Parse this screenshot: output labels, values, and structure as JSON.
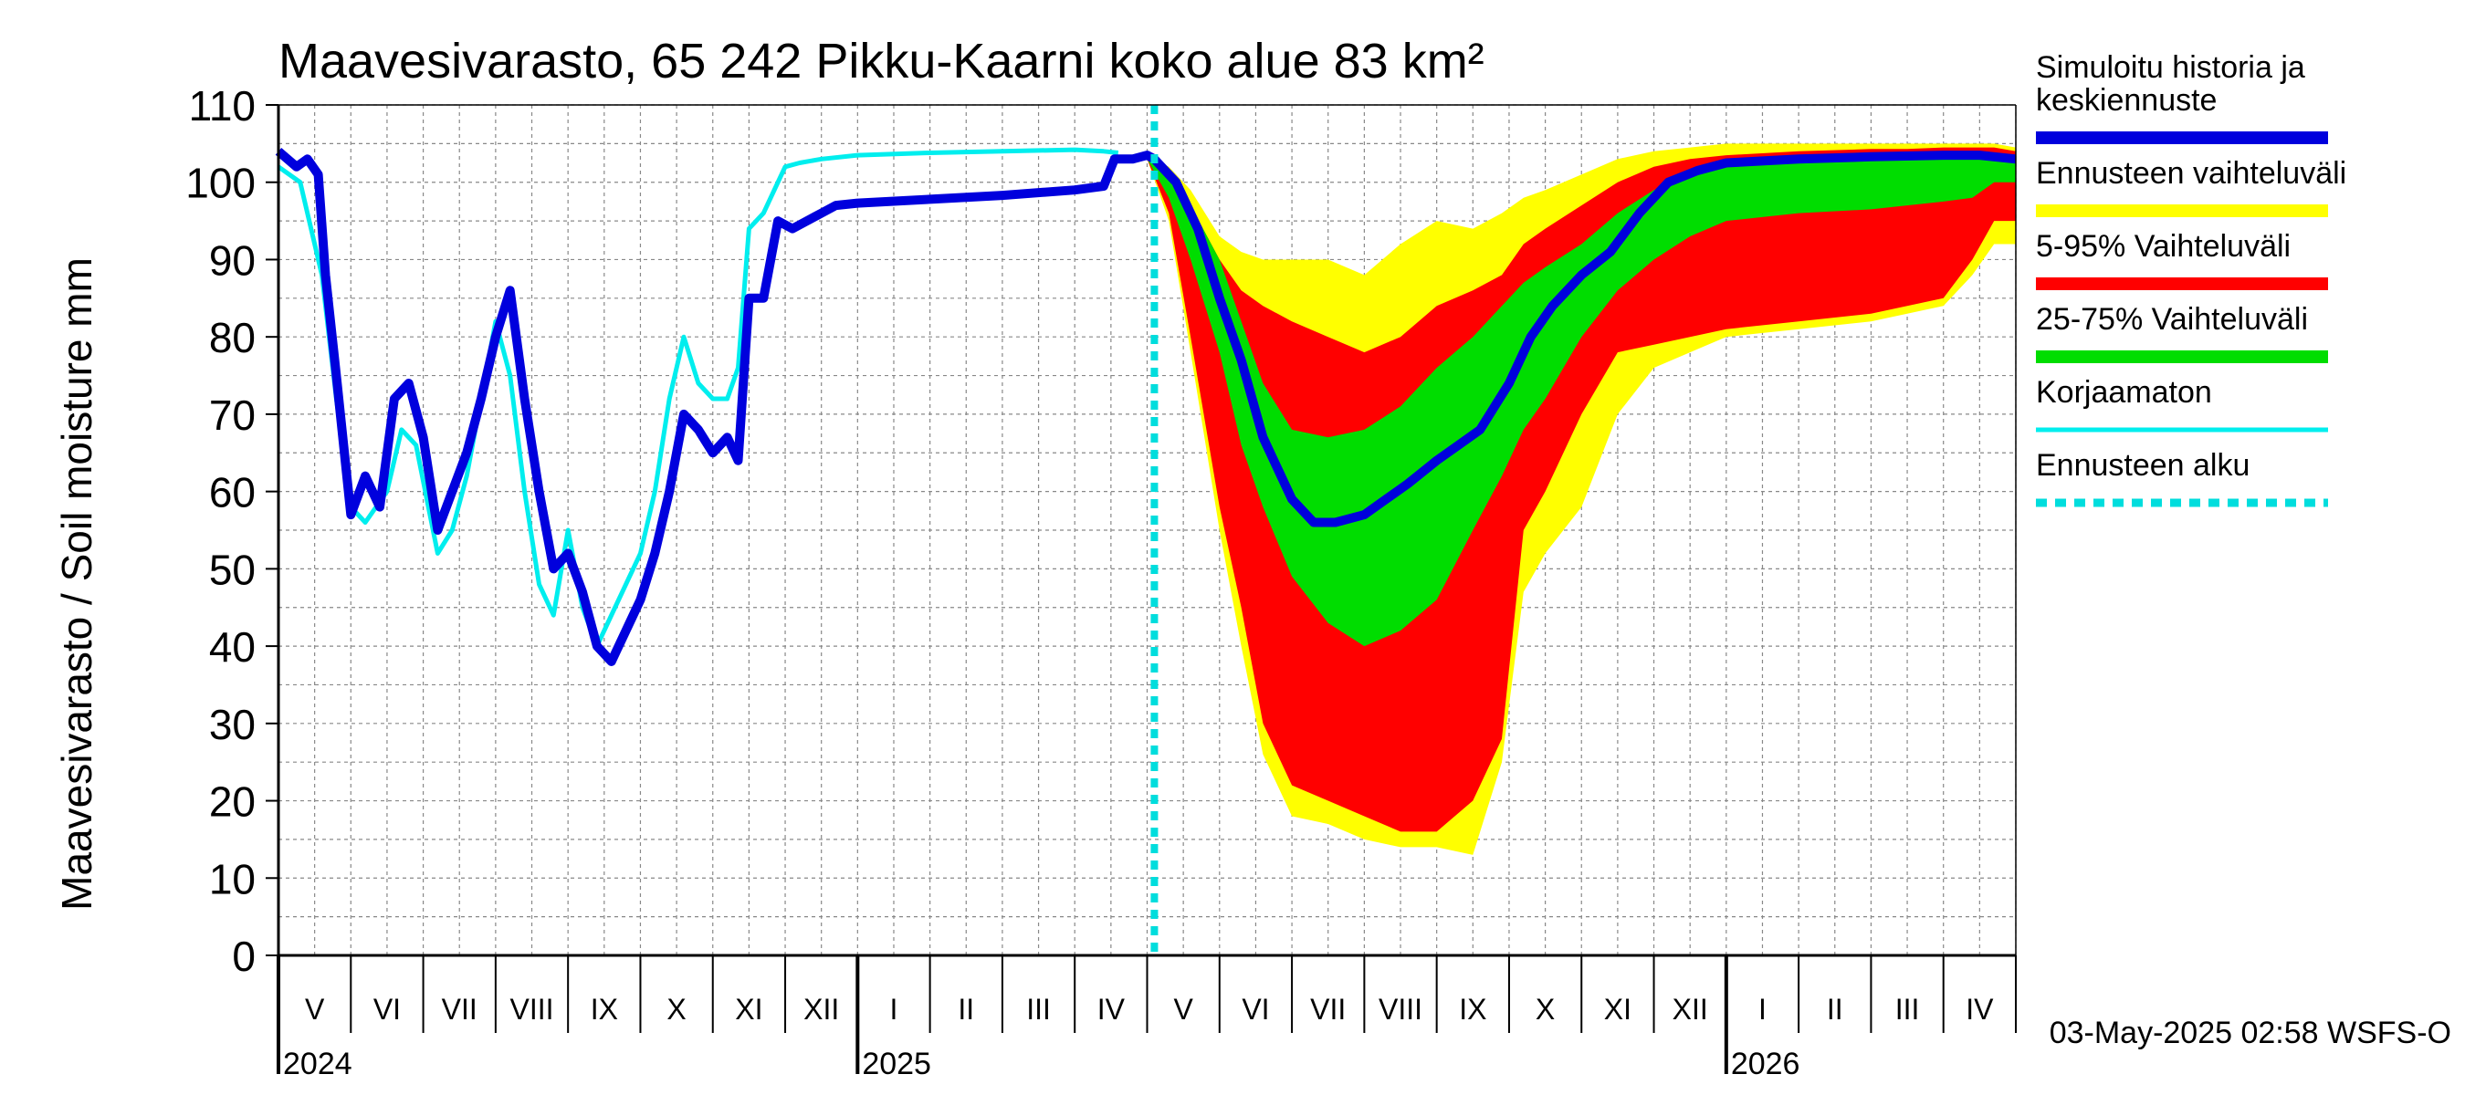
{
  "chart_data": {
    "type": "area",
    "title": "Maavesivarasto, 65 242 Pikku-Kaarni koko alue 83 km²",
    "ylabel": "Maavesivarasto / Soil moisture   mm",
    "xlabel": "",
    "ylim": [
      0,
      110
    ],
    "y_ticks": [
      0,
      10,
      20,
      30,
      40,
      50,
      60,
      70,
      80,
      90,
      100,
      110
    ],
    "grid": true,
    "x_range_month_index": [
      0,
      24
    ],
    "month_labels": [
      "V",
      "VI",
      "VII",
      "VIII",
      "IX",
      "X",
      "XI",
      "XII",
      "I",
      "II",
      "III",
      "IV",
      "V",
      "VI",
      "VII",
      "VIII",
      "IX",
      "X",
      "XI",
      "XII",
      "I",
      "II",
      "III",
      "IV"
    ],
    "year_labels": [
      {
        "label": "2024",
        "month_index": 0
      },
      {
        "label": "2025",
        "month_index": 8
      },
      {
        "label": "2026",
        "month_index": 20
      }
    ],
    "forecast_start_month_index": 12.1,
    "legend_position": "right",
    "legend": [
      {
        "label": "Simuloitu historia ja keskiennuste",
        "lines": [
          "Simuloitu historia ja",
          "keskiennuste"
        ],
        "color": "#0000dd",
        "style": "solid"
      },
      {
        "label": "Ennusteen vaihteluväli",
        "lines": [
          "Ennusteen vaihteluväli"
        ],
        "color": "#ffff00",
        "style": "solid"
      },
      {
        "label": "5-95% Vaihteluväli",
        "lines": [
          "5-95% Vaihteluväli"
        ],
        "color": "#ff0000",
        "style": "solid"
      },
      {
        "label": "25-75% Vaihteluväli",
        "lines": [
          "25-75% Vaihteluväli"
        ],
        "color": "#00dd00",
        "style": "solid"
      },
      {
        "label": "Korjaamaton",
        "lines": [
          "Korjaamaton"
        ],
        "color": "#00eeee",
        "style": "solid"
      },
      {
        "label": "Ennusteen alku",
        "lines": [
          "Ennusteen alku"
        ],
        "color": "#00dddd",
        "style": "dashed"
      }
    ],
    "series": [
      {
        "name": "Simuloitu historia ja keskiennuste",
        "color": "#0000dd",
        "points": [
          [
            0,
            104
          ],
          [
            0.25,
            102
          ],
          [
            0.4,
            103
          ],
          [
            0.55,
            101
          ],
          [
            0.65,
            88
          ],
          [
            0.8,
            75
          ],
          [
            1.0,
            57
          ],
          [
            1.2,
            62
          ],
          [
            1.4,
            58
          ],
          [
            1.6,
            72
          ],
          [
            1.8,
            74
          ],
          [
            2.0,
            67
          ],
          [
            2.2,
            55
          ],
          [
            2.4,
            60
          ],
          [
            2.6,
            65
          ],
          [
            2.8,
            72
          ],
          [
            3.0,
            80
          ],
          [
            3.2,
            86
          ],
          [
            3.4,
            72
          ],
          [
            3.6,
            60
          ],
          [
            3.8,
            50
          ],
          [
            4.0,
            52
          ],
          [
            4.2,
            47
          ],
          [
            4.4,
            40
          ],
          [
            4.6,
            38
          ],
          [
            4.8,
            42
          ],
          [
            5.0,
            46
          ],
          [
            5.2,
            52
          ],
          [
            5.4,
            60
          ],
          [
            5.6,
            70
          ],
          [
            5.8,
            68
          ],
          [
            6.0,
            65
          ],
          [
            6.2,
            67
          ],
          [
            6.35,
            64
          ],
          [
            6.5,
            85
          ],
          [
            6.7,
            85
          ],
          [
            6.9,
            95
          ],
          [
            7.1,
            94
          ],
          [
            7.3,
            95
          ],
          [
            7.5,
            96
          ],
          [
            7.7,
            97
          ],
          [
            8.0,
            97.3
          ],
          [
            9.0,
            97.8
          ],
          [
            10.0,
            98.3
          ],
          [
            11.0,
            99.0
          ],
          [
            11.4,
            99.5
          ],
          [
            11.55,
            103
          ],
          [
            11.8,
            103
          ],
          [
            12.0,
            103.5
          ],
          [
            12.1,
            103
          ],
          [
            12.4,
            100
          ],
          [
            12.7,
            94
          ],
          [
            13.0,
            85
          ],
          [
            13.3,
            77
          ],
          [
            13.6,
            67
          ],
          [
            14.0,
            59
          ],
          [
            14.3,
            56
          ],
          [
            14.6,
            56
          ],
          [
            15.0,
            57
          ],
          [
            15.3,
            59
          ],
          [
            15.6,
            61
          ],
          [
            16.0,
            64
          ],
          [
            16.3,
            66
          ],
          [
            16.6,
            68
          ],
          [
            17.0,
            74
          ],
          [
            17.3,
            80
          ],
          [
            17.6,
            84
          ],
          [
            18.0,
            88
          ],
          [
            18.4,
            91
          ],
          [
            18.8,
            96
          ],
          [
            19.2,
            100
          ],
          [
            19.6,
            101.5
          ],
          [
            20.0,
            102.5
          ],
          [
            21.0,
            103
          ],
          [
            22.0,
            103.3
          ],
          [
            23.0,
            103.5
          ],
          [
            23.5,
            103.5
          ],
          [
            24.0,
            103
          ]
        ]
      },
      {
        "name": "Korjaamaton",
        "color": "#00eeee",
        "points": [
          [
            0,
            102
          ],
          [
            0.3,
            100
          ],
          [
            0.6,
            88
          ],
          [
            0.8,
            72
          ],
          [
            1.0,
            58
          ],
          [
            1.2,
            56
          ],
          [
            1.5,
            60
          ],
          [
            1.7,
            68
          ],
          [
            1.9,
            66
          ],
          [
            2.2,
            52
          ],
          [
            2.4,
            55
          ],
          [
            2.6,
            62
          ],
          [
            2.8,
            72
          ],
          [
            3.0,
            82
          ],
          [
            3.2,
            75
          ],
          [
            3.4,
            60
          ],
          [
            3.6,
            48
          ],
          [
            3.8,
            44
          ],
          [
            4.0,
            55
          ],
          [
            4.2,
            45
          ],
          [
            4.4,
            40
          ],
          [
            4.6,
            44
          ],
          [
            4.8,
            48
          ],
          [
            5.0,
            52
          ],
          [
            5.2,
            60
          ],
          [
            5.4,
            72
          ],
          [
            5.6,
            80
          ],
          [
            5.8,
            74
          ],
          [
            6.0,
            72
          ],
          [
            6.2,
            72
          ],
          [
            6.35,
            76
          ],
          [
            6.5,
            94
          ],
          [
            6.7,
            96
          ],
          [
            6.9,
            100
          ],
          [
            7.0,
            102
          ],
          [
            7.2,
            102.5
          ],
          [
            7.5,
            103
          ],
          [
            8.0,
            103.5
          ],
          [
            9.0,
            103.8
          ],
          [
            10.0,
            104
          ],
          [
            11.0,
            104.2
          ],
          [
            11.4,
            104
          ],
          [
            11.6,
            103.8
          ]
        ]
      }
    ],
    "bands": [
      {
        "name": "Ennusteen vaihteluväli",
        "color": "#ffff00",
        "points": [
          [
            12.0,
            103.5,
            103
          ],
          [
            12.3,
            102,
            95
          ],
          [
            12.6,
            99,
            78
          ],
          [
            13.0,
            93,
            55
          ],
          [
            13.3,
            91,
            40
          ],
          [
            13.6,
            90,
            26
          ],
          [
            14.0,
            90,
            18
          ],
          [
            14.5,
            90,
            17
          ],
          [
            15.0,
            88,
            15
          ],
          [
            15.5,
            92,
            14
          ],
          [
            16.0,
            95,
            14
          ],
          [
            16.5,
            94,
            13
          ],
          [
            16.9,
            96,
            25
          ],
          [
            17.2,
            98,
            47
          ],
          [
            17.5,
            99,
            52
          ],
          [
            18.0,
            101,
            58
          ],
          [
            18.5,
            103,
            70
          ],
          [
            19.0,
            104,
            76
          ],
          [
            19.5,
            104.5,
            78
          ],
          [
            20.0,
            105,
            80
          ],
          [
            21.0,
            105,
            81
          ],
          [
            22.0,
            105,
            82
          ],
          [
            22.5,
            105,
            83
          ],
          [
            23.0,
            105,
            84
          ],
          [
            23.4,
            105,
            88
          ],
          [
            23.7,
            105,
            92
          ],
          [
            24.0,
            104.5,
            92
          ]
        ]
      },
      {
        "name": "5-95% Vaihteluväli",
        "color": "#ff0000",
        "points": [
          [
            12.0,
            103.5,
            103
          ],
          [
            12.3,
            101,
            96
          ],
          [
            12.6,
            97,
            80
          ],
          [
            13.0,
            90,
            58
          ],
          [
            13.3,
            86,
            45
          ],
          [
            13.6,
            84,
            30
          ],
          [
            14.0,
            82,
            22
          ],
          [
            14.5,
            80,
            20
          ],
          [
            15.0,
            78,
            18
          ],
          [
            15.5,
            80,
            16
          ],
          [
            16.0,
            84,
            16
          ],
          [
            16.5,
            86,
            20
          ],
          [
            16.9,
            88,
            28
          ],
          [
            17.2,
            92,
            55
          ],
          [
            17.5,
            94,
            60
          ],
          [
            18.0,
            97,
            70
          ],
          [
            18.5,
            100,
            78
          ],
          [
            19.0,
            102,
            79
          ],
          [
            19.5,
            103,
            80
          ],
          [
            20.0,
            103.5,
            81
          ],
          [
            21.0,
            104,
            82
          ],
          [
            22.0,
            104.3,
            83
          ],
          [
            22.5,
            104.3,
            84
          ],
          [
            23.0,
            104.5,
            85
          ],
          [
            23.4,
            104.5,
            90
          ],
          [
            23.7,
            104.5,
            95
          ],
          [
            24.0,
            104,
            95
          ]
        ]
      },
      {
        "name": "25-75% Vaihteluväli",
        "color": "#00dd00",
        "points": [
          [
            12.0,
            103.5,
            103
          ],
          [
            12.3,
            101,
            98
          ],
          [
            12.6,
            97,
            90
          ],
          [
            13.0,
            90,
            78
          ],
          [
            13.3,
            82,
            66
          ],
          [
            13.6,
            74,
            58
          ],
          [
            14.0,
            68,
            49
          ],
          [
            14.5,
            67,
            43
          ],
          [
            15.0,
            68,
            40
          ],
          [
            15.5,
            71,
            42
          ],
          [
            16.0,
            76,
            46
          ],
          [
            16.5,
            80,
            55
          ],
          [
            16.9,
            84,
            62
          ],
          [
            17.2,
            87,
            68
          ],
          [
            17.5,
            89,
            72
          ],
          [
            18.0,
            92,
            80
          ],
          [
            18.5,
            96,
            86
          ],
          [
            19.0,
            99,
            90
          ],
          [
            19.5,
            101,
            93
          ],
          [
            20.0,
            102,
            95
          ],
          [
            21.0,
            102.5,
            96
          ],
          [
            22.0,
            103,
            96.5
          ],
          [
            22.5,
            103,
            97
          ],
          [
            23.0,
            103.5,
            97.5
          ],
          [
            23.4,
            103.5,
            98
          ],
          [
            23.7,
            103.5,
            100
          ],
          [
            24.0,
            103,
            100
          ]
        ]
      }
    ]
  },
  "footer": {
    "timestamp": "03-May-2025 02:58 WSFS-O"
  }
}
